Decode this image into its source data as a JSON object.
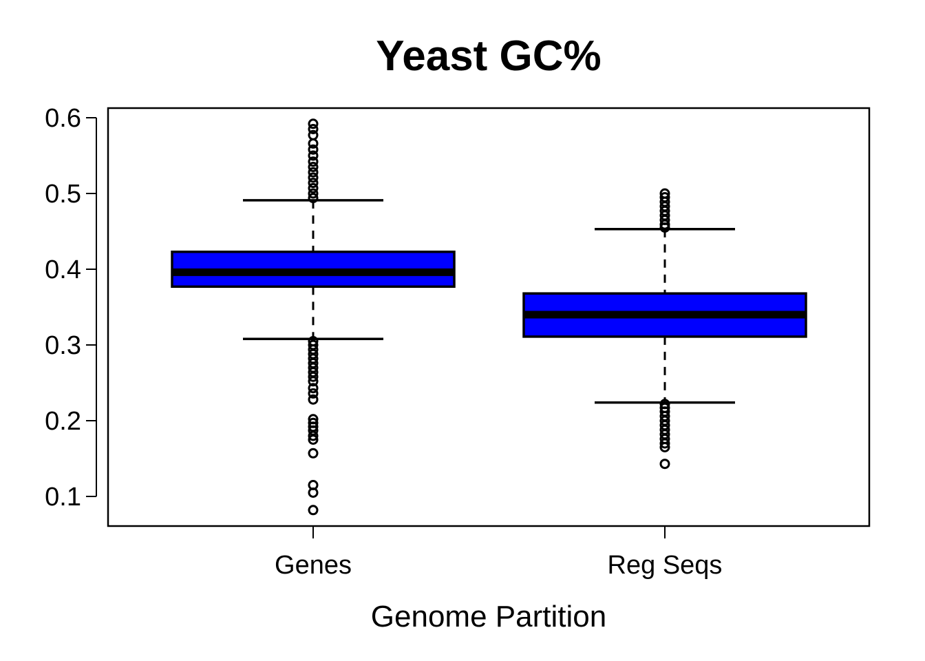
{
  "chart_data": {
    "type": "boxplot",
    "title": "Yeast GC%",
    "xlabel": "Genome Partition",
    "ylabel": "",
    "ylim": [
      0.08,
      0.6
    ],
    "yticks": [
      "0.1",
      "0.2",
      "0.3",
      "0.4",
      "0.5",
      "0.6"
    ],
    "categories": [
      "Genes",
      "Reg Seqs"
    ],
    "box_color": "#0000ff",
    "grid": false,
    "series": [
      {
        "category": "Genes",
        "whisker_low": 0.308,
        "q1": 0.377,
        "median": 0.396,
        "q3": 0.423,
        "whisker_high": 0.491,
        "outliers": [
          0.592,
          0.585,
          0.577,
          0.566,
          0.558,
          0.55,
          0.542,
          0.535,
          0.528,
          0.521,
          0.514,
          0.507,
          0.5,
          0.494,
          0.305,
          0.3,
          0.294,
          0.288,
          0.282,
          0.276,
          0.27,
          0.264,
          0.258,
          0.252,
          0.243,
          0.236,
          0.228,
          0.202,
          0.197,
          0.192,
          0.187,
          0.18,
          0.175,
          0.157,
          0.115,
          0.105,
          0.082
        ]
      },
      {
        "category": "Reg Seqs",
        "whisker_low": 0.224,
        "q1": 0.311,
        "median": 0.34,
        "q3": 0.368,
        "whisker_high": 0.453,
        "outliers": [
          0.5,
          0.495,
          0.489,
          0.483,
          0.477,
          0.471,
          0.465,
          0.459,
          0.455,
          0.222,
          0.217,
          0.212,
          0.206,
          0.2,
          0.194,
          0.188,
          0.182,
          0.176,
          0.17,
          0.165,
          0.143
        ]
      }
    ]
  }
}
